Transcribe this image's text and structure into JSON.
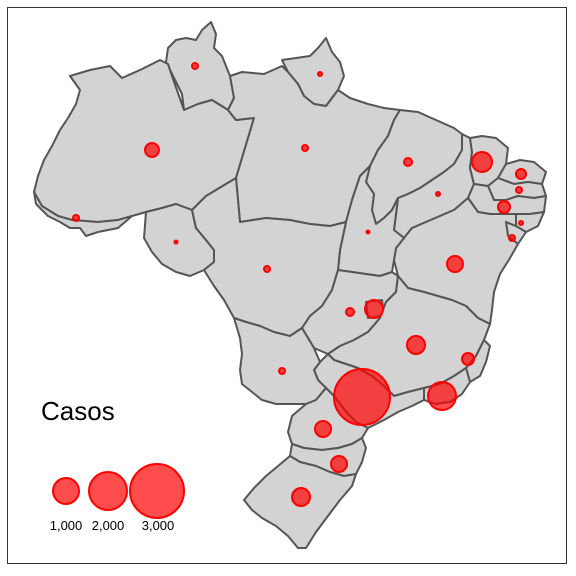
{
  "map": {
    "fill_color": "#d3d3d3",
    "border_color": "#555555",
    "bubble_color": "#ff0000"
  },
  "legend": {
    "title": "Casos",
    "entries": [
      {
        "label": "1,000",
        "value": 1000
      },
      {
        "label": "2,000",
        "value": 2000
      },
      {
        "label": "3,000",
        "value": 3000
      }
    ]
  },
  "chart_data": {
    "type": "proportional-symbol-map",
    "legend_title": "Casos",
    "symbol_units": "Casos",
    "legend_values": [
      1000,
      2000,
      3000
    ]
  }
}
